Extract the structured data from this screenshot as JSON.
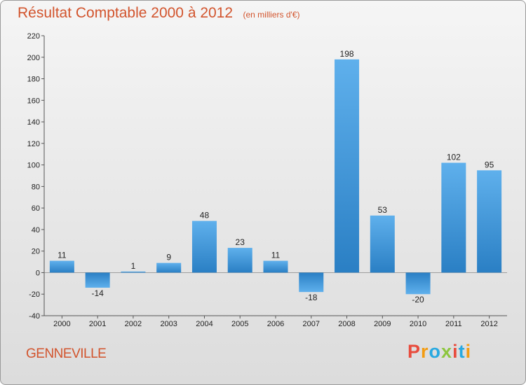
{
  "title": "Résultat Comptable 2000 à 2012",
  "subtitle": "(en milliers d'€)",
  "commune": "GENNEVILLE",
  "brand": {
    "letters": [
      "P",
      "r",
      "o",
      "x",
      "i",
      "t",
      "i"
    ],
    "colors": [
      "#e84c3d",
      "#f39c12",
      "#27a9e1",
      "#8dc63f",
      "#e84c3d",
      "#27a9e1",
      "#f39c12"
    ]
  },
  "chart_data": {
    "type": "bar",
    "title": "Résultat Comptable 2000 à 2012",
    "subtitle": "(en milliers d'€)",
    "categories": [
      "2000",
      "2001",
      "2002",
      "2003",
      "2004",
      "2005",
      "2006",
      "2007",
      "2008",
      "2009",
      "2010",
      "2011",
      "2012"
    ],
    "values": [
      11,
      -14,
      1,
      9,
      48,
      23,
      11,
      -18,
      198,
      53,
      -20,
      102,
      95
    ],
    "labels": [
      "11",
      "-14",
      "1",
      "9",
      "48",
      "23",
      "11",
      "-18",
      "198",
      "53",
      "-20",
      "102",
      "95"
    ],
    "ylim": [
      -40,
      220
    ],
    "yticks": [
      "-40",
      "-20",
      "0",
      "20",
      "40",
      "60",
      "80",
      "100",
      "120",
      "140",
      "160",
      "180",
      "200",
      "220"
    ],
    "grid": false,
    "bar_color": "#3d9ae0"
  }
}
